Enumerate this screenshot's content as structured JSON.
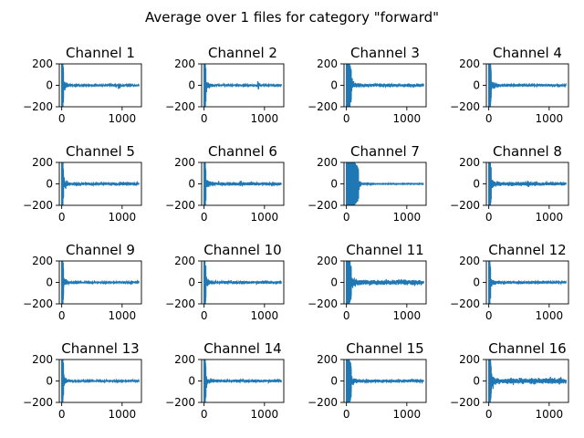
{
  "figure": {
    "title": "Average over 1 files for category \"forward\""
  },
  "colors": {
    "series": "#1f77b4",
    "axes": "#000000",
    "background": "#ffffff"
  },
  "chart_data": {
    "type": "line",
    "layout": "4x4 grid of line subplots",
    "shared": {
      "xlim": [
        -40,
        1320
      ],
      "ylim": [
        -200,
        200
      ],
      "xticks": [
        0,
        1000
      ],
      "yticks": [
        -200,
        0,
        200
      ],
      "n_samples": 1280
    },
    "panels": [
      {
        "title": "Channel 1",
        "settle_sample": 30,
        "noise": 4,
        "bumps": [
          [
            950,
            12
          ]
        ]
      },
      {
        "title": "Channel 2",
        "settle_sample": 30,
        "noise": 4,
        "bumps": [
          [
            900,
            14
          ]
        ]
      },
      {
        "title": "Channel 3",
        "settle_sample": 80,
        "noise": 6,
        "bumps": []
      },
      {
        "title": "Channel 4",
        "settle_sample": 40,
        "noise": 5,
        "bumps": []
      },
      {
        "title": "Channel 5",
        "settle_sample": 30,
        "noise": 6,
        "bumps": []
      },
      {
        "title": "Channel 6",
        "settle_sample": 30,
        "noise": 6,
        "bumps": [
          [
            600,
            12
          ]
        ]
      },
      {
        "title": "Channel 7",
        "settle_sample": 200,
        "noise": 0.5,
        "bumps": []
      },
      {
        "title": "Channel 8",
        "settle_sample": 40,
        "noise": 7,
        "bumps": [
          [
            650,
            12
          ]
        ]
      },
      {
        "title": "Channel 9",
        "settle_sample": 30,
        "noise": 4,
        "bumps": []
      },
      {
        "title": "Channel 10",
        "settle_sample": 30,
        "noise": 5,
        "bumps": []
      },
      {
        "title": "Channel 11",
        "settle_sample": 80,
        "noise": 10,
        "bumps": []
      },
      {
        "title": "Channel 12",
        "settle_sample": 30,
        "noise": 5,
        "bumps": []
      },
      {
        "title": "Channel 13",
        "settle_sample": 30,
        "noise": 4,
        "bumps": []
      },
      {
        "title": "Channel 14",
        "settle_sample": 30,
        "noise": 5,
        "bumps": []
      },
      {
        "title": "Channel 15",
        "settle_sample": 80,
        "noise": 6,
        "bumps": []
      },
      {
        "title": "Channel 16",
        "settle_sample": 40,
        "noise": 11,
        "bumps": []
      }
    ]
  }
}
